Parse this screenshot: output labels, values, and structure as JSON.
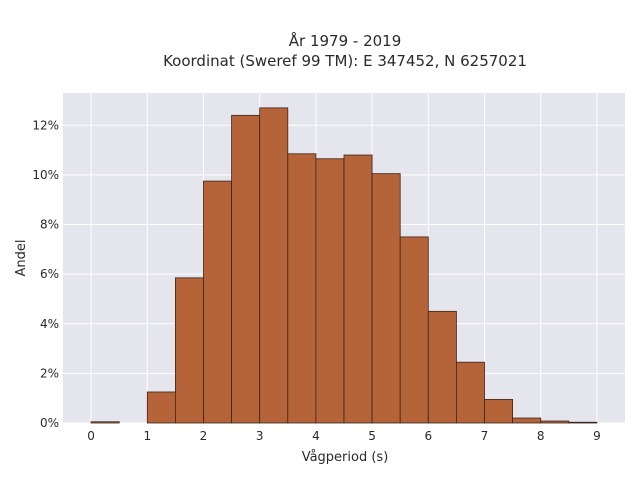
{
  "chart_data": {
    "type": "bar",
    "title": "År 1979 - 2019",
    "subtitle": "Koordinat (Sweref 99 TM): E 347452, N 6257021",
    "xlabel": "Vågperiod (s)",
    "ylabel": "Andel",
    "xlim": [
      -0.5,
      9.5
    ],
    "ylim": [
      0,
      13.3
    ],
    "xticks": [
      0,
      1,
      2,
      3,
      4,
      5,
      6,
      7,
      8,
      9
    ],
    "xtick_labels": [
      "0",
      "1",
      "2",
      "3",
      "4",
      "5",
      "6",
      "7",
      "8",
      "9"
    ],
    "yticks": [
      0,
      2,
      4,
      6,
      8,
      10,
      12
    ],
    "ytick_labels": [
      "0%",
      "2%",
      "4%",
      "6%",
      "8%",
      "10%",
      "12%"
    ],
    "bin_width": 0.5,
    "bins": [
      {
        "x0": 0.0,
        "value": 0.05
      },
      {
        "x0": 0.5,
        "value": 0.0
      },
      {
        "x0": 1.0,
        "value": 1.25
      },
      {
        "x0": 1.5,
        "value": 5.85
      },
      {
        "x0": 2.0,
        "value": 9.75
      },
      {
        "x0": 2.5,
        "value": 12.4
      },
      {
        "x0": 3.0,
        "value": 12.7
      },
      {
        "x0": 3.5,
        "value": 10.85
      },
      {
        "x0": 4.0,
        "value": 10.65
      },
      {
        "x0": 4.5,
        "value": 10.8
      },
      {
        "x0": 5.0,
        "value": 10.05
      },
      {
        "x0": 5.5,
        "value": 7.5
      },
      {
        "x0": 6.0,
        "value": 4.5
      },
      {
        "x0": 6.5,
        "value": 2.45
      },
      {
        "x0": 7.0,
        "value": 0.95
      },
      {
        "x0": 7.5,
        "value": 0.2
      },
      {
        "x0": 8.0,
        "value": 0.08
      },
      {
        "x0": 8.5,
        "value": 0.03
      }
    ],
    "grid": true,
    "colors": {
      "bar_fill": "#b5643a",
      "bar_stroke": "#3d2418",
      "plot_background": "#e5e5ee",
      "grid": "#ffffff"
    }
  }
}
